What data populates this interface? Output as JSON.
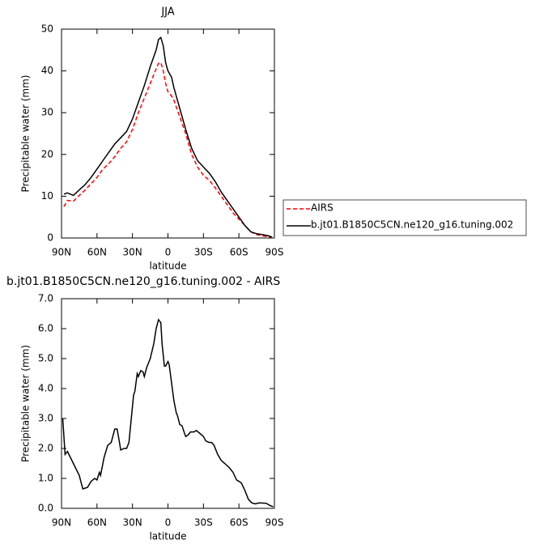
{
  "chart_data": [
    {
      "type": "line",
      "title": "JJA",
      "xlabel": "latitude",
      "ylabel": "Precipitable water (mm)",
      "x": [
        88,
        85,
        80,
        75,
        70,
        65,
        60,
        55,
        50,
        45,
        40,
        35,
        30,
        25,
        20,
        15,
        10,
        8,
        6,
        4,
        2,
        0,
        -3,
        -5,
        -10,
        -15,
        -20,
        -25,
        -30,
        -35,
        -40,
        -45,
        -50,
        -55,
        -60,
        -65,
        -70,
        -75,
        -80,
        -85,
        -88
      ],
      "series": [
        {
          "name": "AIRS",
          "color": "#ff0000",
          "dashed": true,
          "values": [
            7.5,
            9,
            8.8,
            10.2,
            11.5,
            13,
            14.5,
            16.5,
            17.8,
            19.5,
            21.5,
            23,
            26,
            30,
            33.5,
            37,
            40.5,
            41.8,
            42,
            40,
            37,
            35,
            34,
            33,
            29,
            25,
            20,
            17,
            15,
            13.8,
            12,
            10,
            8,
            6,
            4.5,
            3,
            1.5,
            0.8,
            0.5,
            0.3,
            0.1
          ]
        },
        {
          "name": "b.jt01.B1850C5CN.ne120_g16.tuning.002",
          "color": "#000000",
          "dashed": false,
          "values": [
            10.5,
            10.8,
            10.2,
            11.5,
            12.8,
            14.5,
            16.5,
            18.5,
            20.5,
            22.5,
            24,
            25.5,
            28.5,
            32.5,
            36.5,
            41,
            45,
            47.5,
            48,
            46,
            42,
            40,
            38.5,
            36,
            31,
            26,
            21.5,
            18.5,
            17,
            15.5,
            13.5,
            11,
            9,
            7,
            5,
            3,
            1.5,
            1,
            0.8,
            0.5,
            0.2
          ]
        }
      ],
      "xlim": [
        90,
        -90
      ],
      "xticks": [
        {
          "value": 90,
          "label": "90N"
        },
        {
          "value": 60,
          "label": "60N"
        },
        {
          "value": 30,
          "label": "30N"
        },
        0,
        {
          "value": -30,
          "label": "30S"
        },
        {
          "value": -60,
          "label": "60S"
        },
        {
          "value": -90,
          "label": "90S"
        }
      ],
      "ylim": [
        0,
        50
      ],
      "yticks": [
        0,
        10,
        20,
        30,
        40,
        50
      ],
      "legend": "right"
    },
    {
      "type": "line",
      "title": "b.jt01.B1850C5CN.ne120_g16.tuning.002 - AIRS",
      "xlabel": "latitude",
      "ylabel": "Precipitable water (mm)",
      "x": [
        89,
        87,
        85,
        80,
        75,
        72,
        68,
        65,
        62,
        60,
        58,
        57,
        54,
        51,
        48,
        45,
        43,
        41,
        40,
        37,
        35,
        33,
        31,
        29,
        28,
        26,
        25,
        23,
        21,
        20,
        18,
        15,
        12,
        10,
        8,
        6,
        5,
        3,
        2,
        0,
        -1,
        -3,
        -5,
        -7,
        -8,
        -10,
        -12,
        -14,
        -15,
        -17,
        -19,
        -22,
        -24,
        -27,
        -30,
        -32,
        -35,
        -37,
        -39,
        -42,
        -45,
        -48,
        -52,
        -55,
        -58,
        -60,
        -62,
        -65,
        -68,
        -71,
        -74,
        -77,
        -83,
        -86,
        -89
      ],
      "series": [
        {
          "name": "b.jt01.B1850C5CN.ne120_g16.tuning.002 - AIRS",
          "color": "#000000",
          "dashed": false,
          "values": [
            3.0,
            1.8,
            1.9,
            1.5,
            1.1,
            0.65,
            0.7,
            0.9,
            1.0,
            0.95,
            1.2,
            1.1,
            1.7,
            2.1,
            2.2,
            2.65,
            2.65,
            2.2,
            1.95,
            2.0,
            2.0,
            2.2,
            3.0,
            3.8,
            3.9,
            4.5,
            4.4,
            4.6,
            4.55,
            4.4,
            4.7,
            5.0,
            5.5,
            6.0,
            6.3,
            6.2,
            5.5,
            4.75,
            4.75,
            4.9,
            4.8,
            4.2,
            3.6,
            3.2,
            3.1,
            2.8,
            2.75,
            2.5,
            2.4,
            2.45,
            2.55,
            2.55,
            2.6,
            2.5,
            2.4,
            2.25,
            2.2,
            2.2,
            2.1,
            1.8,
            1.6,
            1.5,
            1.35,
            1.2,
            0.95,
            0.9,
            0.85,
            0.6,
            0.3,
            0.18,
            0.15,
            0.18,
            0.17,
            0.1,
            0.05
          ]
        }
      ],
      "xlim": [
        90,
        -90
      ],
      "xticks": [
        {
          "value": 90,
          "label": "90N"
        },
        {
          "value": 60,
          "label": "60N"
        },
        {
          "value": 30,
          "label": "30N"
        },
        0,
        {
          "value": -30,
          "label": "30S"
        },
        {
          "value": -60,
          "label": "60S"
        },
        {
          "value": -90,
          "label": "90S"
        }
      ],
      "ylim": [
        0,
        7
      ],
      "yticks": [
        {
          "value": 0,
          "label": "0.0"
        },
        {
          "value": 1,
          "label": "1.0"
        },
        {
          "value": 2,
          "label": "2.0"
        },
        {
          "value": 3,
          "label": "3.0"
        },
        {
          "value": 4,
          "label": "4.0"
        },
        {
          "value": 5,
          "label": "5.0"
        },
        {
          "value": 6,
          "label": "6.0"
        },
        {
          "value": 7,
          "label": "7.0"
        }
      ]
    }
  ]
}
